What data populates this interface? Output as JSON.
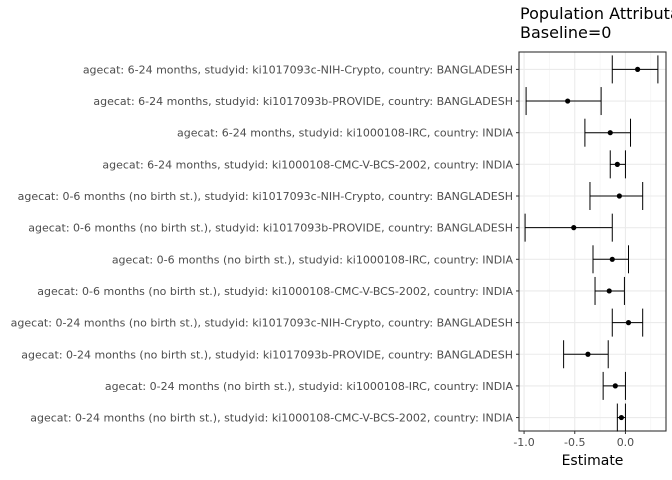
{
  "chart_data": {
    "type": "scatter",
    "subtype": "forest-plot",
    "title": [
      "Population Attributa",
      "Baseline=0"
    ],
    "xlabel": "Estimate",
    "xlim": [
      -1.05,
      0.4
    ],
    "xticks": [
      -1.0,
      -0.5,
      0.0
    ],
    "xtick_labels": [
      "-1.0",
      "-0.5",
      "0.0"
    ],
    "grid": true,
    "rows": [
      {
        "label": "agecat: 6-24 months, studyid: ki1017093c-NIH-Crypto, country: BANGLADESH",
        "estimate": 0.12,
        "lower": -0.13,
        "upper": 0.32
      },
      {
        "label": "agecat: 6-24 months, studyid: ki1017093b-PROVIDE, country: BANGLADESH",
        "estimate": -0.57,
        "lower": -0.98,
        "upper": -0.24
      },
      {
        "label": "agecat: 6-24 months, studyid: ki1000108-IRC, country: INDIA",
        "estimate": -0.15,
        "lower": -0.4,
        "upper": 0.05
      },
      {
        "label": "agecat: 6-24 months, studyid: ki1000108-CMC-V-BCS-2002, country: INDIA",
        "estimate": -0.08,
        "lower": -0.15,
        "upper": 0.0
      },
      {
        "label": "agecat: 0-6 months (no birth st.), studyid: ki1017093c-NIH-Crypto, country: BANGLADESH",
        "estimate": -0.06,
        "lower": -0.35,
        "upper": 0.17
      },
      {
        "label": "agecat: 0-6 months (no birth st.), studyid: ki1017093b-PROVIDE, country: BANGLADESH",
        "estimate": -0.51,
        "lower": -0.99,
        "upper": -0.13
      },
      {
        "label": "agecat: 0-6 months (no birth st.), studyid: ki1000108-IRC, country: INDIA",
        "estimate": -0.13,
        "lower": -0.32,
        "upper": 0.03
      },
      {
        "label": "agecat: 0-6 months (no birth st.), studyid: ki1000108-CMC-V-BCS-2002, country: INDIA",
        "estimate": -0.16,
        "lower": -0.3,
        "upper": -0.01
      },
      {
        "label": "agecat: 0-24 months (no birth st.), studyid: ki1017093c-NIH-Crypto, country: BANGLADESH",
        "estimate": 0.03,
        "lower": -0.13,
        "upper": 0.17
      },
      {
        "label": "agecat: 0-24 months (no birth st.), studyid: ki1017093b-PROVIDE, country: BANGLADESH",
        "estimate": -0.37,
        "lower": -0.61,
        "upper": -0.17
      },
      {
        "label": "agecat: 0-24 months (no birth st.), studyid: ki1000108-IRC, country: INDIA",
        "estimate": -0.1,
        "lower": -0.22,
        "upper": 0.0
      },
      {
        "label": "agecat: 0-24 months (no birth st.), studyid: ki1000108-CMC-V-BCS-2002, country: INDIA",
        "estimate": -0.04,
        "lower": -0.08,
        "upper": 0.0
      }
    ]
  }
}
